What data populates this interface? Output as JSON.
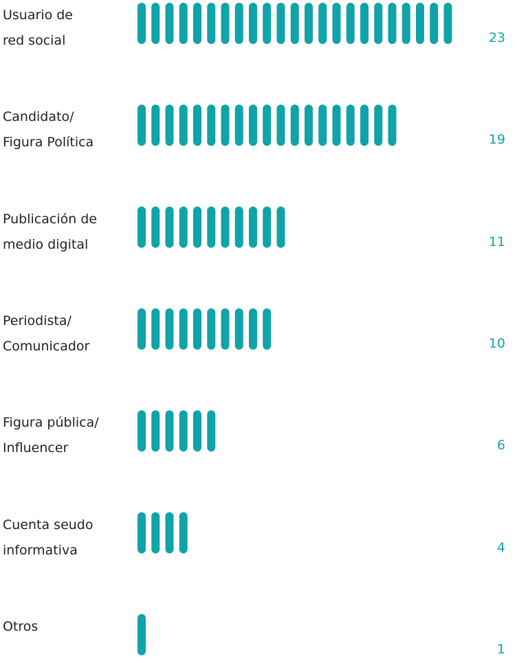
{
  "chart_data": {
    "type": "pictogram",
    "categories": [
      "Usuario de\nred social",
      "Candidato/\nFigura Política",
      "Publicación de\nmedio digital",
      "Periodista/\nComunicador",
      "Figura pública/\nInfluencer",
      "Cuenta seudo\ninformativa",
      "Otros"
    ],
    "values": [
      23,
      19,
      11,
      10,
      6,
      4,
      1
    ],
    "color": "#10a3a7"
  }
}
